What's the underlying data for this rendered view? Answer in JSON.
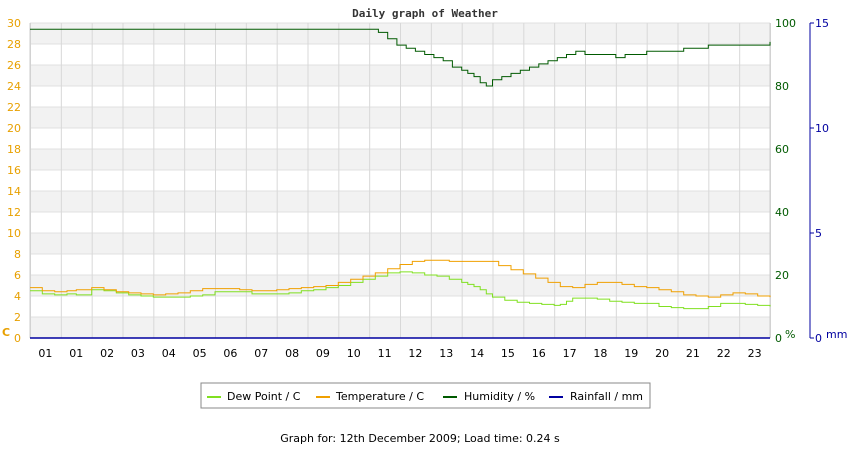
{
  "chart_data": {
    "type": "line",
    "title": "Daily graph of Weather",
    "x_ticks": [
      "01",
      "01",
      "02",
      "03",
      "04",
      "05",
      "06",
      "07",
      "08",
      "09",
      "10",
      "11",
      "12",
      "13",
      "14",
      "15",
      "16",
      "17",
      "18",
      "19",
      "20",
      "21",
      "22",
      "23"
    ],
    "x_range": [
      0,
      24
    ],
    "axes": {
      "left": {
        "unit": "C",
        "ylim": [
          0,
          30
        ],
        "ticks": [
          "0",
          "2",
          "4",
          "6",
          "8",
          "10",
          "12",
          "14",
          "16",
          "18",
          "20",
          "22",
          "24",
          "26",
          "28",
          "30"
        ],
        "color": "#e8a000"
      },
      "right1": {
        "unit": "%",
        "ylim": [
          0,
          100
        ],
        "ticks": [
          "0",
          "20",
          "40",
          "60",
          "80",
          "100"
        ],
        "color": "#005a00"
      },
      "right2": {
        "unit": "mm",
        "ylim": [
          0,
          15
        ],
        "ticks": [
          "0",
          "5",
          "10",
          "15"
        ],
        "color": "#0000a0"
      }
    },
    "grid": true,
    "legend_position": "bottom",
    "series": [
      {
        "name": "Dew Point / C",
        "axis": "left",
        "color": "#80e020",
        "x": [
          0,
          0.4,
          0.8,
          1.2,
          1.5,
          2.0,
          2.4,
          2.8,
          3.2,
          3.6,
          4.0,
          4.4,
          4.8,
          5.2,
          5.6,
          6.0,
          6.4,
          6.8,
          7.2,
          7.6,
          8.0,
          8.4,
          8.8,
          9.2,
          9.6,
          10.0,
          10.4,
          10.8,
          11.2,
          11.6,
          12.0,
          12.4,
          12.8,
          13.2,
          13.6,
          14.0,
          14.2,
          14.4,
          14.6,
          14.8,
          15.0,
          15.4,
          15.8,
          16.2,
          16.6,
          17.0,
          17.2,
          17.4,
          17.6,
          18.0,
          18.4,
          18.8,
          19.2,
          19.6,
          20.0,
          20.4,
          20.8,
          21.2,
          21.6,
          22.0,
          22.4,
          22.8,
          23.2,
          23.6,
          24.0
        ],
        "y": [
          4.5,
          4.2,
          4.1,
          4.2,
          4.1,
          4.6,
          4.5,
          4.3,
          4.1,
          4.0,
          3.9,
          3.9,
          3.9,
          4.0,
          4.1,
          4.4,
          4.4,
          4.4,
          4.2,
          4.2,
          4.2,
          4.3,
          4.5,
          4.6,
          4.8,
          5.0,
          5.3,
          5.6,
          5.9,
          6.2,
          6.3,
          6.2,
          6.0,
          5.9,
          5.6,
          5.3,
          5.1,
          4.9,
          4.6,
          4.2,
          3.9,
          3.6,
          3.4,
          3.3,
          3.2,
          3.1,
          3.2,
          3.5,
          3.8,
          3.8,
          3.7,
          3.5,
          3.4,
          3.3,
          3.3,
          3.0,
          2.9,
          2.8,
          2.8,
          3.0,
          3.3,
          3.3,
          3.2,
          3.1,
          3.0
        ]
      },
      {
        "name": "Temperature / C",
        "axis": "left",
        "color": "#f0a000",
        "x": [
          0,
          0.4,
          0.8,
          1.2,
          1.5,
          2.0,
          2.4,
          2.8,
          3.2,
          3.6,
          4.0,
          4.4,
          4.8,
          5.2,
          5.6,
          6.0,
          6.4,
          6.8,
          7.2,
          7.6,
          8.0,
          8.4,
          8.8,
          9.2,
          9.6,
          10.0,
          10.4,
          10.8,
          11.2,
          11.6,
          12.0,
          12.4,
          12.8,
          13.2,
          13.6,
          14.0,
          14.4,
          14.8,
          15.2,
          15.6,
          16.0,
          16.4,
          16.8,
          17.2,
          17.6,
          18.0,
          18.4,
          18.8,
          19.2,
          19.6,
          20.0,
          20.4,
          20.8,
          21.2,
          21.6,
          22.0,
          22.4,
          22.8,
          23.2,
          23.6,
          24.0
        ],
        "y": [
          4.8,
          4.5,
          4.4,
          4.5,
          4.6,
          4.8,
          4.6,
          4.4,
          4.3,
          4.2,
          4.1,
          4.2,
          4.3,
          4.5,
          4.7,
          4.7,
          4.7,
          4.6,
          4.5,
          4.5,
          4.6,
          4.7,
          4.8,
          4.9,
          5.0,
          5.3,
          5.6,
          5.9,
          6.2,
          6.6,
          7.0,
          7.3,
          7.4,
          7.4,
          7.3,
          7.3,
          7.3,
          7.3,
          6.9,
          6.5,
          6.1,
          5.7,
          5.3,
          4.9,
          4.8,
          5.1,
          5.3,
          5.3,
          5.1,
          4.9,
          4.8,
          4.6,
          4.4,
          4.1,
          4.0,
          3.9,
          4.1,
          4.3,
          4.2,
          4.0,
          3.9
        ]
      },
      {
        "name": "Humidity / %",
        "axis": "right1",
        "color": "#005a00",
        "x": [
          0,
          1,
          2,
          3,
          4,
          5,
          6,
          7,
          8,
          9,
          10,
          11.0,
          11.3,
          11.6,
          11.9,
          12.2,
          12.5,
          12.8,
          13.1,
          13.4,
          13.7,
          14.0,
          14.2,
          14.4,
          14.6,
          14.8,
          15.0,
          15.3,
          15.6,
          15.9,
          16.2,
          16.5,
          16.8,
          17.1,
          17.4,
          17.7,
          18.0,
          18.4,
          18.8,
          19.0,
          19.3,
          19.6,
          20.0,
          20.4,
          20.8,
          21.2,
          21.6,
          22.0,
          22.4,
          22.8,
          23.2,
          23.6,
          24.0
        ],
        "y": [
          98,
          98,
          98,
          98,
          98,
          98,
          98,
          98,
          98,
          98,
          98,
          98,
          97,
          95,
          93,
          92,
          91,
          90,
          89,
          88,
          86,
          85,
          84,
          83,
          81,
          80,
          82,
          83,
          84,
          85,
          86,
          87,
          88,
          89,
          90,
          91,
          90,
          90,
          90,
          89,
          90,
          90,
          91,
          91,
          91,
          92,
          92,
          93,
          93,
          93,
          93,
          93,
          94
        ]
      },
      {
        "name": "Rainfall / mm",
        "axis": "right2",
        "color": "#0000a0",
        "x": [
          0,
          24
        ],
        "y": [
          0,
          0
        ]
      }
    ]
  },
  "footer": {
    "text": "Graph for: 12th December 2009; Load time: 0.24 s"
  }
}
